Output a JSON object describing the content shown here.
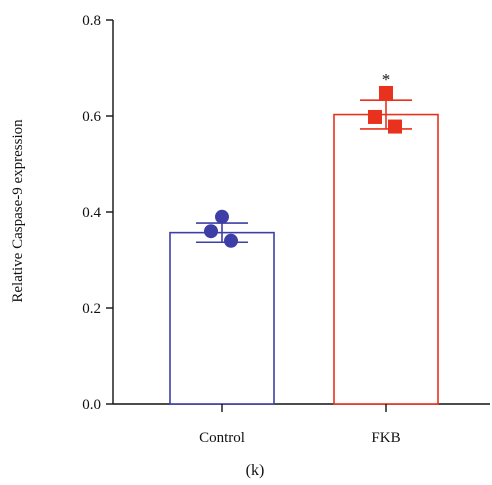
{
  "chart_data": {
    "type": "bar",
    "ylabel": "Relative Caspase-9 expression",
    "ylim": [
      0,
      0.8
    ],
    "yticks": [
      0.0,
      0.2,
      0.4,
      0.6,
      0.8
    ],
    "ytick_labels": [
      "0.0",
      "0.2",
      "0.4",
      "0.6",
      "0.8"
    ],
    "categories": [
      "Control",
      "FKB"
    ],
    "bars": [
      {
        "category": "Control",
        "mean": 0.357,
        "error": 0.02,
        "points": [
          0.39,
          0.36,
          0.34
        ],
        "marker": "circle",
        "color": "#3d3fa6",
        "significance": ""
      },
      {
        "category": "FKB",
        "mean": 0.603,
        "error": 0.03,
        "points": [
          0.648,
          0.598,
          0.578
        ],
        "marker": "square",
        "color": "#e8321e",
        "significance": "*"
      }
    ],
    "grid": false,
    "legend": "none"
  },
  "panel_label": "(k)"
}
